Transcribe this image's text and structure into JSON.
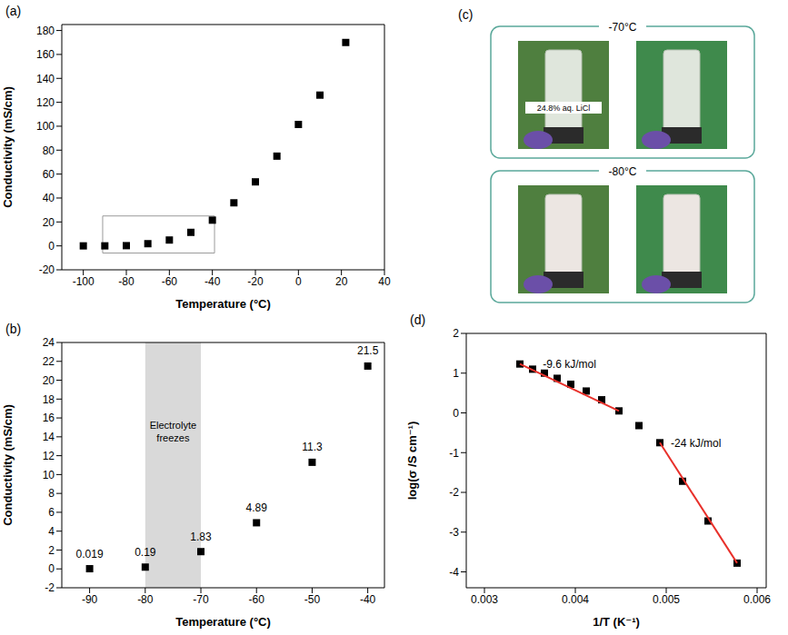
{
  "chart_data": [
    {
      "panel": "(a)",
      "type": "scatter",
      "x_label": "Temperature (°C)",
      "y_label": "Conductivity (mS/cm)",
      "x": [
        -100,
        -90,
        -80,
        -70,
        -60,
        -50,
        -40,
        -30,
        -20,
        -10,
        0,
        10,
        22
      ],
      "values": [
        0.002,
        0.019,
        0.19,
        1.83,
        4.89,
        11.3,
        21.5,
        36,
        53.5,
        75,
        101.5,
        126,
        170
      ],
      "color": "#000000",
      "marker": "square",
      "xlim": [
        -110,
        40
      ],
      "ylim": [
        -20,
        185
      ],
      "xticks": [
        -100,
        -80,
        -60,
        -40,
        -20,
        0,
        20,
        40
      ],
      "yticks": [
        -20,
        0,
        20,
        40,
        60,
        80,
        100,
        120,
        140,
        160,
        180
      ],
      "zoom_box": {
        "xlim": [
          -91,
          -39
        ],
        "ylim": [
          -6,
          25
        ]
      }
    },
    {
      "panel": "(b)",
      "type": "scatter",
      "x_label": "Temperature (°C)",
      "y_label": "Conductivity (mS/cm)",
      "x": [
        -90,
        -80,
        -70,
        -60,
        -50,
        -40
      ],
      "values": [
        0.019,
        0.19,
        1.83,
        4.89,
        11.3,
        21.5
      ],
      "color": "#000000",
      "marker": "square",
      "data_labels": true,
      "xlim": [
        -95,
        -37
      ],
      "ylim": [
        -2,
        24
      ],
      "xticks": [
        -90,
        -80,
        -70,
        -60,
        -50,
        -40
      ],
      "yticks": [
        -2,
        0,
        2,
        4,
        6,
        8,
        10,
        12,
        14,
        16,
        18,
        20,
        22,
        24
      ],
      "annotations": [
        {
          "text": "Electrolyte freezes",
          "xlim": [
            -80,
            -70
          ],
          "color": "#d9d9d9"
        }
      ]
    },
    {
      "panel": "(d)",
      "type": "scatter",
      "x_label": "1/T (K⁻¹)",
      "y_label": "log(σ /S cm⁻¹)",
      "series": [
        {
          "type": "scatter",
          "marker": "square",
          "color": "#000000",
          "x": [
            0.00339,
            0.00353,
            0.00366,
            0.0038,
            0.00395,
            0.00412,
            0.00429,
            0.00448,
            0.0047,
            0.00493,
            0.00518,
            0.00546,
            0.00578
          ],
          "values": [
            1.23,
            1.1,
            1.0,
            0.87,
            0.72,
            0.55,
            0.33,
            0.05,
            -0.32,
            -0.75,
            -1.72,
            -2.72,
            -3.78
          ]
        },
        {
          "type": "line",
          "color": "#e8302a",
          "x": [
            0.00339,
            0.00448
          ],
          "values": [
            1.23,
            0.05
          ],
          "label": "-9.6 kJ/mol"
        },
        {
          "type": "line",
          "color": "#e8302a",
          "x": [
            0.00493,
            0.00578
          ],
          "values": [
            -0.75,
            -3.78
          ],
          "label": "-24 kJ/mol"
        }
      ],
      "xlim": [
        0.0028,
        0.0061
      ],
      "ylim": [
        -4.4,
        2
      ],
      "xticks": [
        0.003,
        0.004,
        0.005,
        0.006
      ],
      "yticks": [
        -4,
        -3,
        -2,
        -1,
        0,
        1,
        2
      ]
    }
  ],
  "photos": {
    "panel": "(c)",
    "groups": [
      {
        "title": "-70°C",
        "label": "24.8% aq. LiCl"
      },
      {
        "title": "-80°C"
      }
    ]
  }
}
